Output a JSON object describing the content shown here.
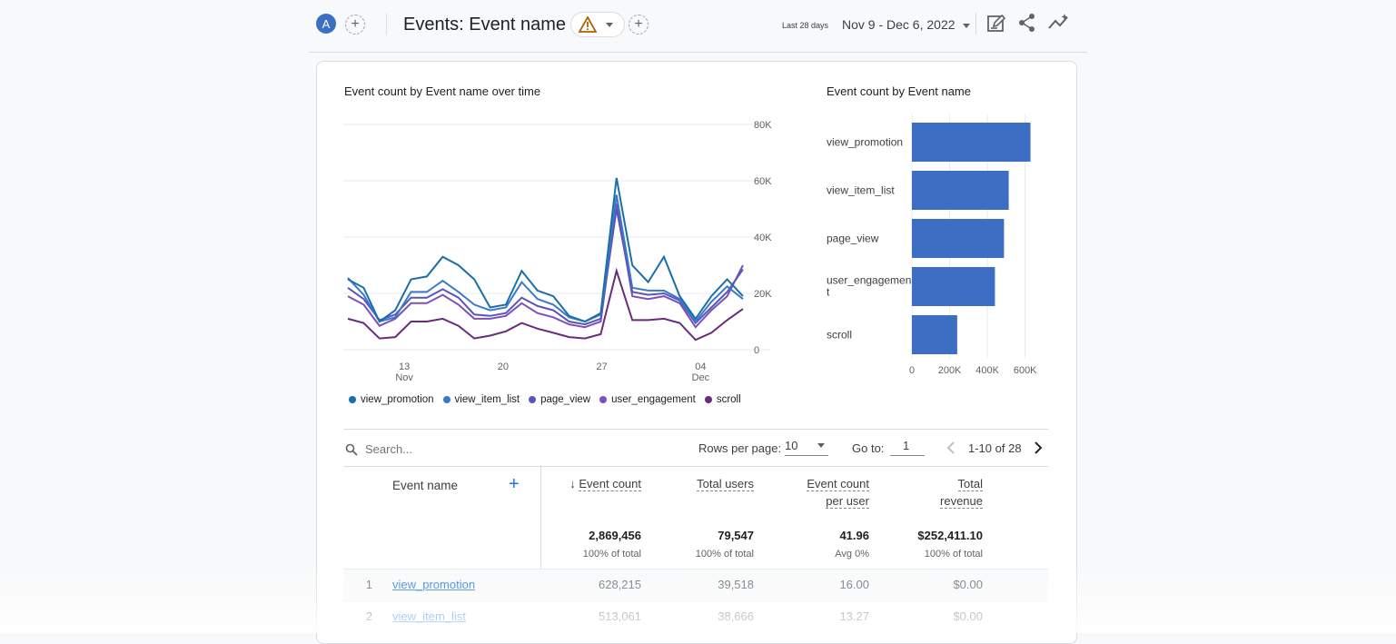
{
  "header": {
    "avatar_letter": "A",
    "title": "Events: Event name",
    "date_range_label": "Last 28 days",
    "date_range_value": "Nov 9 - Dec 6, 2022",
    "icons": [
      "add-comparison-icon",
      "warning-icon",
      "add-icon",
      "customize-report-icon",
      "share-icon",
      "insights-icon"
    ]
  },
  "line_chart": {
    "title": "Event count by Event name over time",
    "legend": [
      {
        "name": "view_promotion",
        "color": "#1a6fa8"
      },
      {
        "name": "view_item_list",
        "color": "#3a79c9"
      },
      {
        "name": "page_view",
        "color": "#5a55b8"
      },
      {
        "name": "user_engagement",
        "color": "#7b52b8"
      },
      {
        "name": "scroll",
        "color": "#6a2b7e"
      }
    ]
  },
  "bar_chart": {
    "title": "Event count by Event name"
  },
  "chart_data": [
    {
      "type": "line",
      "title": "Event count by Event name over time",
      "x_ticks": [
        {
          "label": "13",
          "sub": "Nov"
        },
        {
          "label": "20",
          "sub": ""
        },
        {
          "label": "27",
          "sub": ""
        },
        {
          "label": "04",
          "sub": "Dec"
        }
      ],
      "y_ticks": [
        "80K",
        "60K",
        "40K",
        "20K",
        "0"
      ],
      "ylim": [
        0,
        80000
      ],
      "legend_placement": "bottom",
      "grid": true,
      "series": [
        {
          "name": "view_promotion",
          "color": "#1a6fa8",
          "values": [
            25000,
            22000,
            10000,
            14000,
            25000,
            26000,
            33000,
            30000,
            25000,
            15000,
            16000,
            28000,
            21000,
            19000,
            12000,
            10000,
            13000,
            61000,
            30000,
            24000,
            33000,
            19000,
            11000,
            19000,
            25000,
            19000
          ]
        },
        {
          "name": "view_item_list",
          "color": "#3a79c9",
          "values": [
            25500,
            19500,
            10000,
            11500,
            20500,
            20500,
            24500,
            20500,
            16000,
            14000,
            15000,
            24000,
            18000,
            16000,
            11500,
            10000,
            12500,
            55000,
            22000,
            21000,
            21000,
            18000,
            10000,
            17000,
            22500,
            18000
          ]
        },
        {
          "name": "page_view",
          "color": "#5a55b8",
          "values": [
            22000,
            18000,
            10500,
            12500,
            18500,
            18500,
            21500,
            18500,
            12500,
            12000,
            13000,
            18500,
            15500,
            14000,
            10000,
            9000,
            11000,
            50000,
            20500,
            19500,
            20000,
            17500,
            9500,
            15000,
            20500,
            28500
          ]
        },
        {
          "name": "user_engagement",
          "color": "#7b52b8",
          "values": [
            19000,
            16000,
            8500,
            11000,
            16500,
            16500,
            19500,
            16000,
            11000,
            11000,
            12000,
            16500,
            13000,
            11500,
            9000,
            8000,
            10000,
            52000,
            19000,
            18000,
            19000,
            16500,
            8000,
            14000,
            19000,
            30000
          ]
        },
        {
          "name": "scroll",
          "color": "#6a2b7e",
          "values": [
            11000,
            9500,
            4000,
            4500,
            10000,
            10000,
            11000,
            8500,
            4000,
            5000,
            6500,
            9500,
            7500,
            6000,
            4500,
            4000,
            5500,
            28000,
            10500,
            10500,
            11000,
            9500,
            3500,
            6000,
            10500,
            14500
          ]
        }
      ]
    },
    {
      "type": "bar",
      "orientation": "horizontal",
      "title": "Event count by Event name",
      "categories": [
        "view_promotion",
        "view_item_list",
        "page_view",
        "user_engagement",
        "scroll"
      ],
      "values": [
        628215,
        513061,
        488000,
        440000,
        240000
      ],
      "x_ticks": [
        "0",
        "200K",
        "400K",
        "600K"
      ],
      "xlim": [
        0,
        640000
      ],
      "color": "#3c6fc4"
    }
  ],
  "table_toolbar": {
    "search_placeholder": "Search...",
    "rows_per_page_label": "Rows per page:",
    "rows_per_page_value": "10",
    "goto_label": "Go to:",
    "goto_value": "1",
    "pagination": "1-10 of 28"
  },
  "table": {
    "dimension_header": "Event name",
    "columns": [
      {
        "line1": "Event count",
        "line2": "",
        "total": "2,869,456",
        "sub": "100% of total",
        "sorted": true
      },
      {
        "line1": "Total users",
        "line2": "",
        "total": "79,547",
        "sub": "100% of total",
        "sorted": false
      },
      {
        "line1": "Event count",
        "line2": "per user",
        "total": "41.96",
        "sub": "Avg 0%",
        "sorted": false
      },
      {
        "line1": "Total",
        "line2": "revenue",
        "total": "$252,411.10",
        "sub": "100% of total",
        "sorted": false
      }
    ],
    "rows": [
      {
        "rank": "1",
        "name": "view_promotion",
        "values": [
          "628,215",
          "39,518",
          "16.00",
          "$0.00"
        ]
      },
      {
        "rank": "2",
        "name": "view_item_list",
        "values": [
          "513,061",
          "38,666",
          "13.27",
          "$0.00"
        ]
      }
    ]
  }
}
